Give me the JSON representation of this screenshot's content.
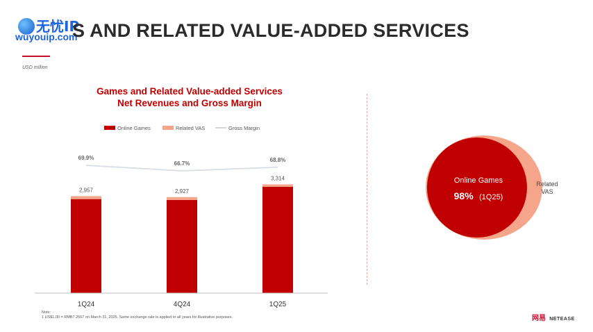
{
  "header": {
    "title": "S AND RELATED VALUE-ADDED SERVICES",
    "unit": "USD million"
  },
  "watermark": {
    "brand": "无忧IP",
    "site": "wuyouip.com"
  },
  "chart_data": {
    "type": "bar",
    "title": [
      "Games and Related Value-added Services",
      "Net Revenues and Gross Margin"
    ],
    "categories": [
      "1Q24",
      "4Q24",
      "1Q25"
    ],
    "series": [
      {
        "name": "Online Games",
        "color": "#c00000",
        "values": [
          2866,
          2838,
          3242
        ]
      },
      {
        "name": "Related VAS",
        "color": "#f4a58a",
        "values": [
          91,
          89,
          72
        ]
      }
    ],
    "totals": [
      "2,957",
      "2,927",
      "3,314"
    ],
    "margin": {
      "name": "Gross Margin",
      "color": "#d9dde6",
      "values": [
        69.9,
        66.7,
        68.8
      ],
      "labels": [
        "69.9%",
        "66.7%",
        "68.8%"
      ]
    },
    "ylim": [
      0,
      3600
    ],
    "legend_position": "top",
    "grid": false
  },
  "mix": {
    "inner_label": "Online Games",
    "inner_value": "98%",
    "inner_period": "(1Q25)",
    "outer_label": [
      "Related",
      "VAS"
    ],
    "inner_color": "#c00000",
    "outer_color": "#f4a58a"
  },
  "footer": {
    "note_heading": "Note:",
    "note_text": "1   US$1.00 = RMB7.2567 on March 31, 2025. Same exchange rate is applied to all years for illustrative purposes.",
    "logo_mark": "网易",
    "logo_word": "NETEASE"
  }
}
